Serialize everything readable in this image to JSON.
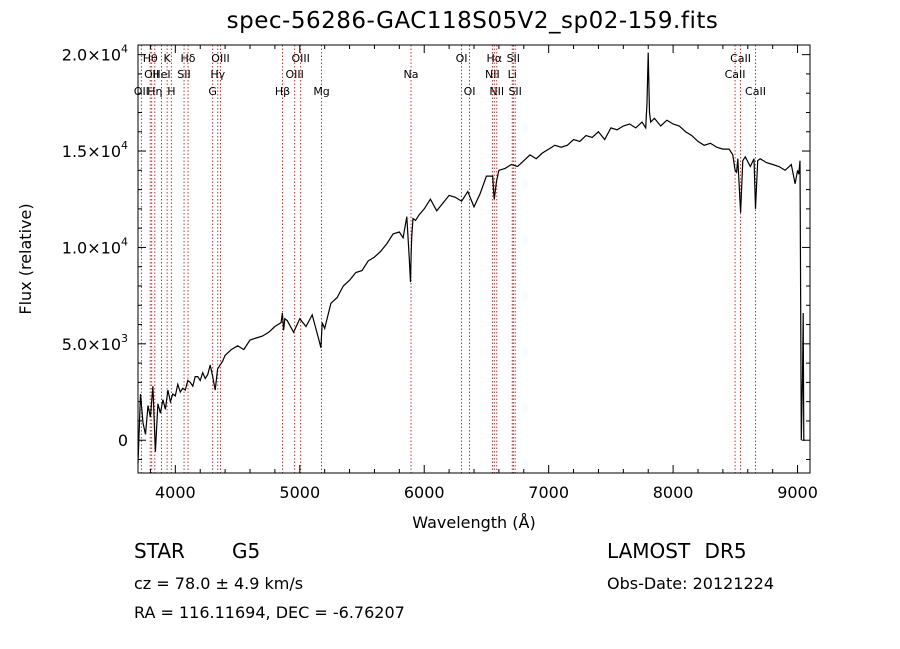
{
  "title": "spec-56286-GAC118S05V2_sp02-159.fits",
  "footer": {
    "object_class": "STAR",
    "subclass": "G5",
    "cz": "cz = 78.0 ± 4.9 km/s",
    "radec": "RA = 116.11694, DEC =  -6.76207",
    "survey": "LAMOST DR5",
    "obs_date": "Obs-Date: 20121224"
  },
  "colors": {
    "spectrum": "#000000",
    "line_marker": "#b22222",
    "axes": "#000000"
  },
  "chart_data": {
    "type": "line",
    "title": "spec-56286-GAC118S05V2_sp02-159.fits",
    "xlabel": "Wavelength (Å)",
    "ylabel": "Flux (relative)",
    "xlim": [
      3700,
      9100
    ],
    "ylim": [
      -1700,
      20500
    ],
    "grid": false,
    "xticks": [
      {
        "value": 4000,
        "label": "4000"
      },
      {
        "value": 5000,
        "label": "5000"
      },
      {
        "value": 6000,
        "label": "6000"
      },
      {
        "value": 7000,
        "label": "7000"
      },
      {
        "value": 8000,
        "label": "8000"
      },
      {
        "value": 9000,
        "label": "9000"
      }
    ],
    "yticks": [
      {
        "value": 0,
        "label": "0"
      },
      {
        "value": 5000,
        "mantissa": "5.0",
        "exp": "3"
      },
      {
        "value": 10000,
        "mantissa": "1.0",
        "exp": "4"
      },
      {
        "value": 15000,
        "mantissa": "1.5",
        "exp": "4"
      },
      {
        "value": 20000,
        "mantissa": "2.0",
        "exp": "4"
      }
    ],
    "series": [
      {
        "x": [
          3700,
          3720,
          3740,
          3760,
          3780,
          3800,
          3820,
          3840,
          3860,
          3880,
          3900,
          3920,
          3940,
          3960,
          3980,
          4000,
          4020,
          4040,
          4060,
          4080,
          4100,
          4120,
          4140,
          4160,
          4180,
          4200,
          4220,
          4240,
          4260,
          4280,
          4300,
          4320,
          4340,
          4360,
          4380,
          4400,
          4450,
          4500,
          4550,
          4600,
          4650,
          4700,
          4750,
          4800,
          4850,
          4860,
          4870,
          4880,
          4900,
          4950,
          5000,
          5050,
          5100,
          5150,
          5170,
          5180,
          5200,
          5250,
          5300,
          5350,
          5400,
          5450,
          5500,
          5550,
          5600,
          5650,
          5700,
          5750,
          5800,
          5830,
          5860,
          5880,
          5890,
          5895,
          5900,
          5910,
          5930,
          5960,
          6000,
          6050,
          6100,
          6150,
          6200,
          6250,
          6300,
          6350,
          6400,
          6450,
          6500,
          6550,
          6560,
          6563,
          6570,
          6580,
          6600,
          6650,
          6700,
          6750,
          6800,
          6850,
          6900,
          6950,
          7000,
          7050,
          7100,
          7150,
          7200,
          7250,
          7300,
          7350,
          7400,
          7450,
          7500,
          7550,
          7600,
          7650,
          7700,
          7750,
          7780,
          7790,
          7800,
          7810,
          7820,
          7850,
          7900,
          7950,
          8000,
          8050,
          8100,
          8150,
          8200,
          8250,
          8300,
          8350,
          8400,
          8450,
          8480,
          8498,
          8510,
          8520,
          8542,
          8560,
          8580,
          8620,
          8650,
          8662,
          8680,
          8700,
          8750,
          8800,
          8850,
          8900,
          8950,
          8980,
          9000,
          9010,
          9020,
          9030,
          9040,
          9045,
          9050,
          9060
        ],
        "y": [
          -1200,
          2400,
          900,
          300,
          1800,
          1200,
          2800,
          -600,
          1900,
          1400,
          2100,
          1600,
          2600,
          2000,
          2400,
          2300,
          2900,
          2500,
          2700,
          2600,
          3100,
          3000,
          2800,
          3300,
          3300,
          3100,
          3500,
          3200,
          3400,
          3900,
          3300,
          2600,
          3700,
          3900,
          4100,
          4400,
          4700,
          4900,
          4700,
          5200,
          5300,
          5400,
          5600,
          5900,
          6100,
          6600,
          5700,
          6300,
          6200,
          5600,
          6300,
          5900,
          6500,
          5300,
          4800,
          6100,
          5800,
          7100,
          7400,
          8000,
          8300,
          8700,
          8800,
          9300,
          9500,
          9800,
          10200,
          10700,
          10800,
          10500,
          11600,
          9400,
          8200,
          9800,
          10600,
          11500,
          11400,
          11700,
          12000,
          12500,
          11900,
          12300,
          12700,
          12600,
          12400,
          12900,
          12100,
          12800,
          13700,
          13700,
          12700,
          12500,
          12900,
          13400,
          14000,
          14100,
          14300,
          14200,
          14500,
          14800,
          14600,
          14900,
          15100,
          15300,
          15200,
          15300,
          15600,
          15500,
          15800,
          15700,
          16000,
          15600,
          16200,
          16100,
          16300,
          16400,
          16200,
          16500,
          16200,
          17500,
          20100,
          17000,
          16500,
          16700,
          16300,
          16600,
          16400,
          16300,
          16000,
          15800,
          15500,
          15300,
          15400,
          15200,
          15100,
          15100,
          14800,
          14000,
          13900,
          14600,
          11800,
          14500,
          14700,
          14200,
          14600,
          12000,
          14500,
          14600,
          14400,
          14300,
          14200,
          14000,
          14300,
          13300,
          14000,
          13800,
          14500,
          0,
          3200,
          6600,
          0,
          0
        ]
      }
    ],
    "line_markers": [
      {
        "name": "OII",
        "x": 3727,
        "label": "OII",
        "row": 3
      },
      {
        "name": "Hθ",
        "x": 3798,
        "label": "Hθ",
        "row": 1
      },
      {
        "name": "OII",
        "x": 3810,
        "label": "OII",
        "row": 2
      },
      {
        "name": "Hη",
        "x": 3835,
        "label": "Hη",
        "row": 3
      },
      {
        "name": "HeI",
        "x": 3889,
        "label": "HeI",
        "row": 2
      },
      {
        "name": "K",
        "x": 3934,
        "label": "K",
        "row": 1
      },
      {
        "name": "H",
        "x": 3968,
        "label": "H",
        "row": 3
      },
      {
        "name": "SII",
        "x": 4070,
        "label": "SII",
        "row": 2
      },
      {
        "name": "Hδ",
        "x": 4102,
        "label": "Hδ",
        "row": 1
      },
      {
        "name": "G",
        "x": 4300,
        "label": "G",
        "row": 3
      },
      {
        "name": "Hγ",
        "x": 4341,
        "label": "Hγ",
        "row": 2
      },
      {
        "name": "OIII",
        "x": 4363,
        "label": "OIII",
        "row": 1
      },
      {
        "name": "Hβ",
        "x": 4861,
        "label": "Hβ",
        "row": 3
      },
      {
        "name": "OIII",
        "x": 4959,
        "label": "OIII",
        "row": 2
      },
      {
        "name": "OIII",
        "x": 5007,
        "label": "OIII",
        "row": 1
      },
      {
        "name": "Mg",
        "x": 5175,
        "label": "Mg",
        "row": 3
      },
      {
        "name": "Na",
        "x": 5894,
        "label": "Na",
        "row": 2
      },
      {
        "name": "OI",
        "x": 6300,
        "label": "OI",
        "row": 1
      },
      {
        "name": "OI",
        "x": 6364,
        "label": "OI",
        "row": 3
      },
      {
        "name": "NII",
        "x": 6548,
        "label": "NII",
        "row": 2
      },
      {
        "name": "Hα",
        "x": 6563,
        "label": "Hα",
        "row": 1
      },
      {
        "name": "NII",
        "x": 6583,
        "label": "NII",
        "row": 3
      },
      {
        "name": "Li",
        "x": 6707,
        "label": "Li",
        "row": 2
      },
      {
        "name": "SII",
        "x": 6716,
        "label": "SII",
        "row": 1
      },
      {
        "name": "SII",
        "x": 6731,
        "label": "SII",
        "row": 3
      },
      {
        "name": "CaII",
        "x": 8498,
        "label": "CaII",
        "row": 2
      },
      {
        "name": "CaII",
        "x": 8542,
        "label": "CaII",
        "row": 1
      },
      {
        "name": "CaII",
        "x": 8662,
        "label": "CaII",
        "row": 3
      }
    ]
  }
}
